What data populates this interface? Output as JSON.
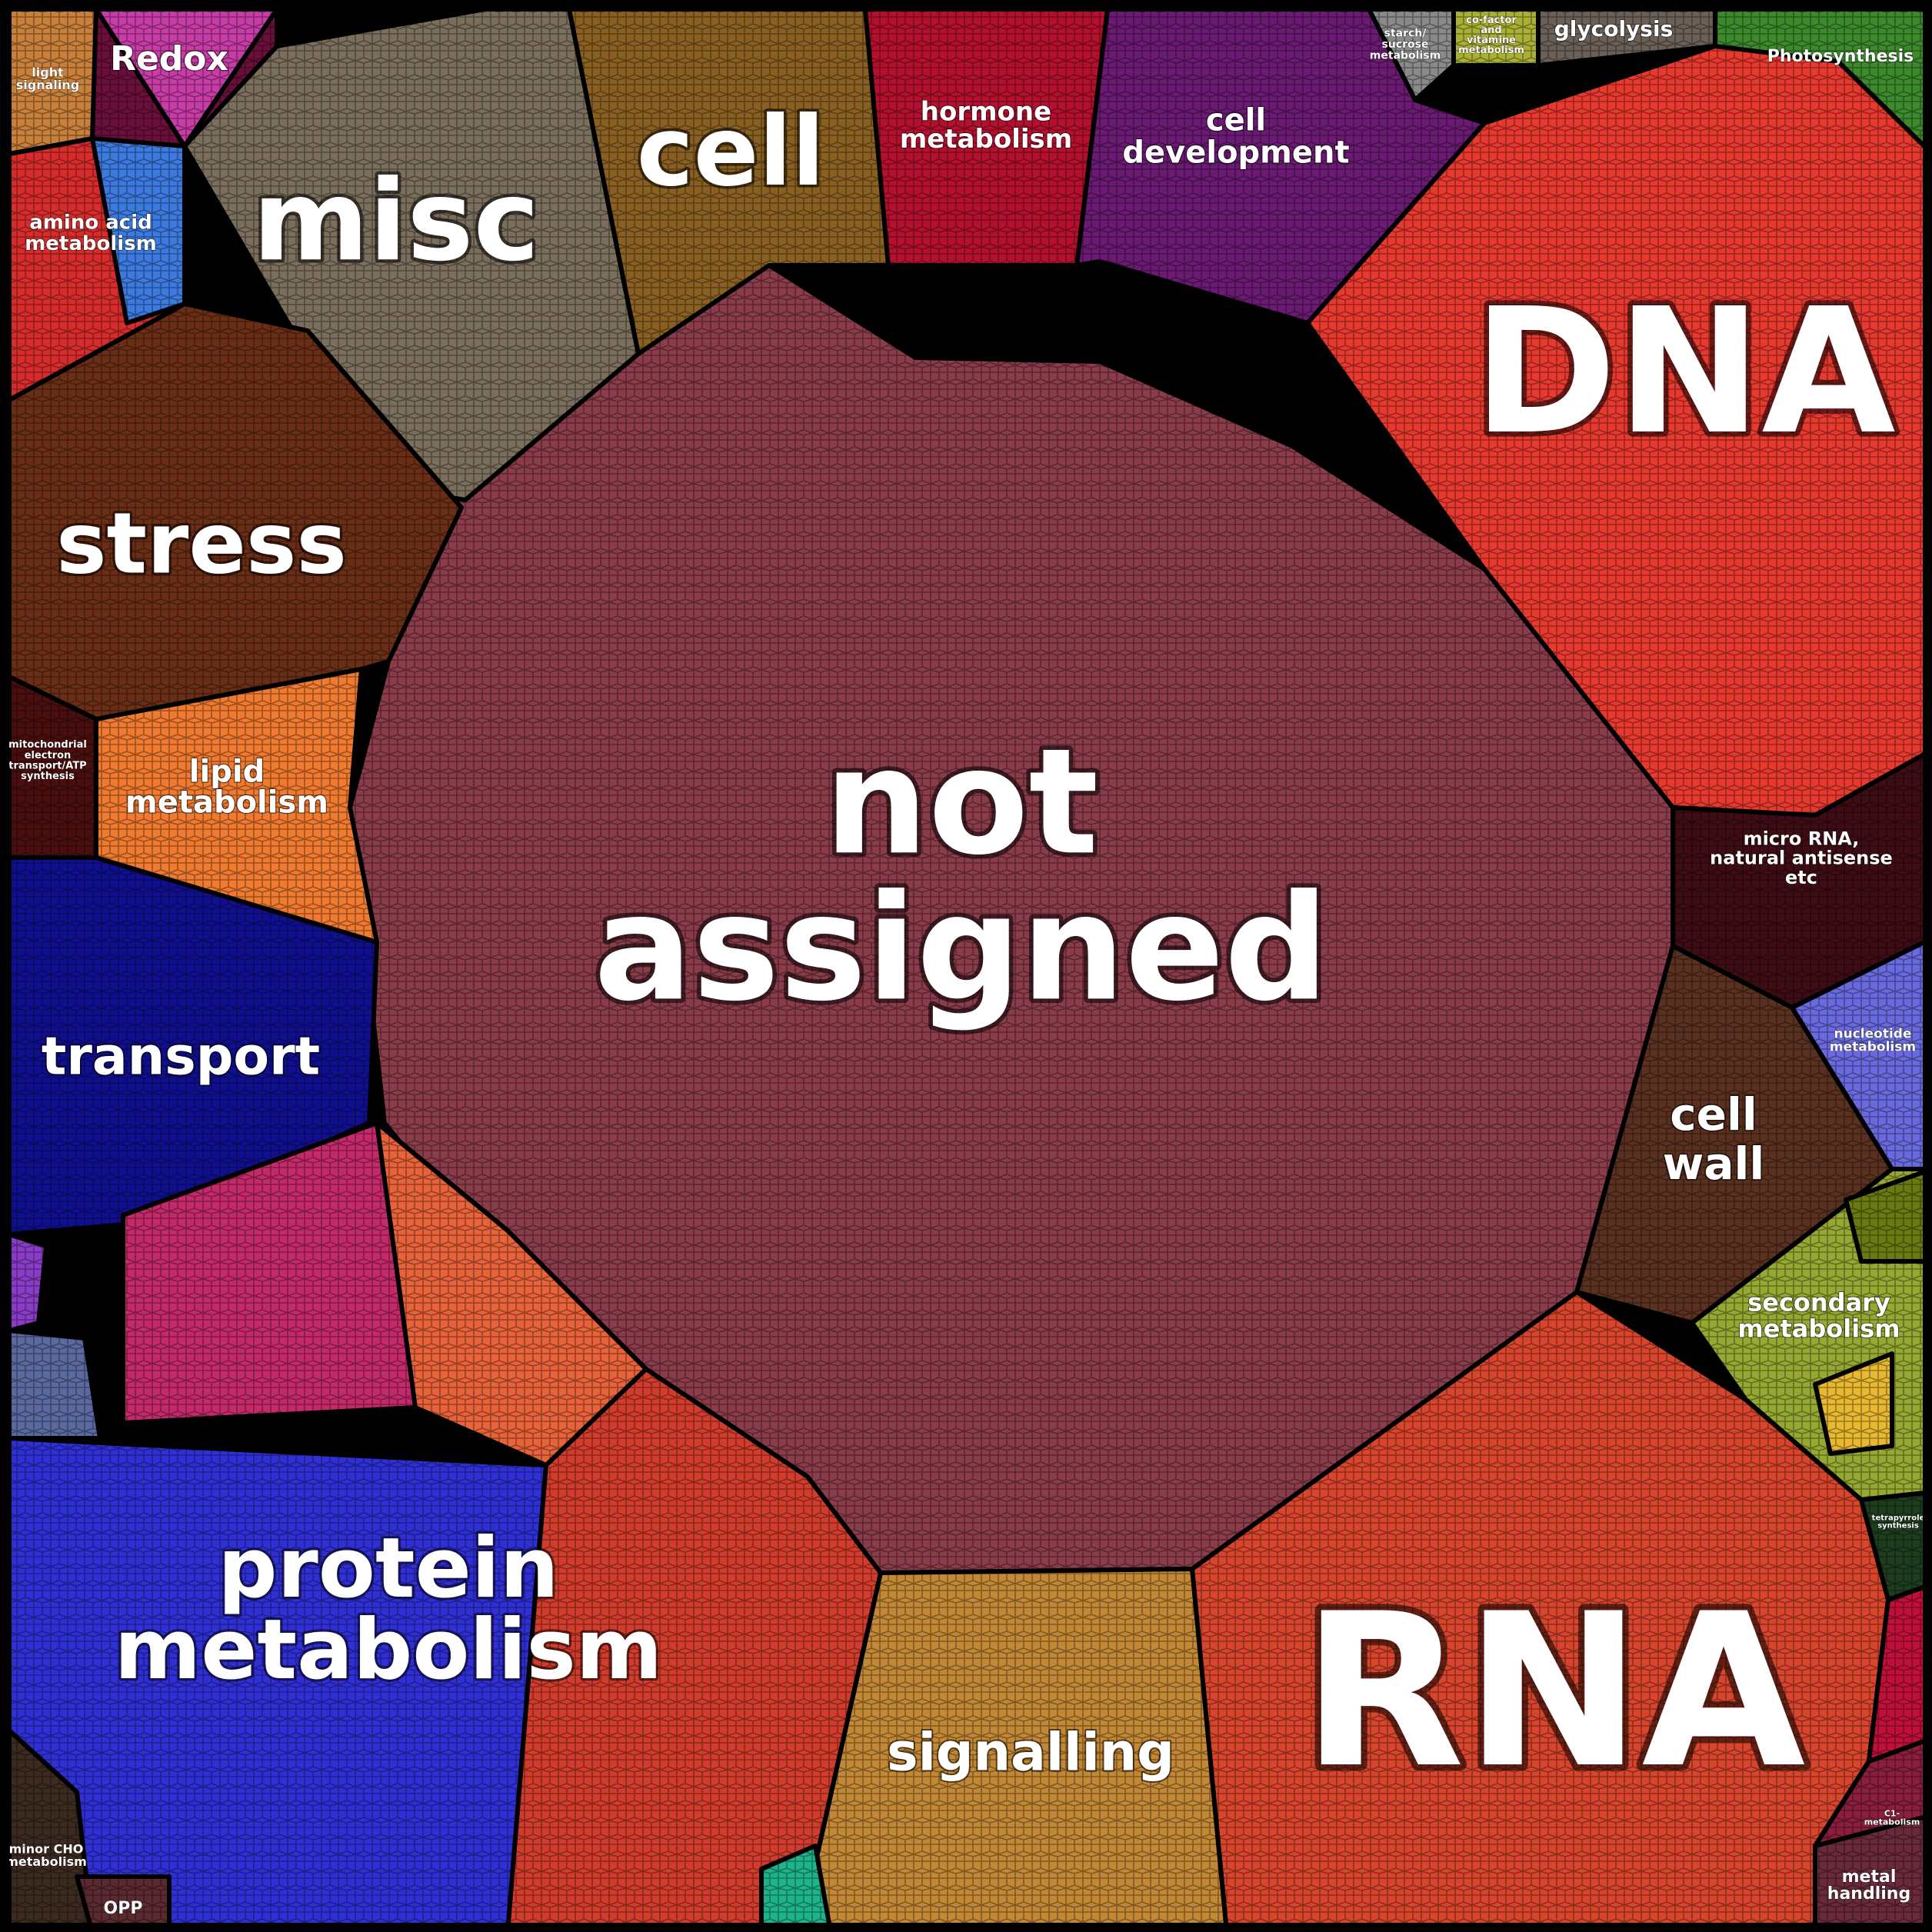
{
  "chart_data": {
    "type": "voronoi-treemap",
    "title": "",
    "style": {
      "background": "#000000",
      "border": "#000000",
      "label_color": "#ffffff"
    },
    "categories": [
      {
        "key": "not_assigned",
        "label": "not\nassigned",
        "color": "#8a3c4a"
      },
      {
        "key": "dna",
        "label": "DNA",
        "color": "#e8392f"
      },
      {
        "key": "rna",
        "label": "RNA",
        "color": "#d8452c"
      },
      {
        "key": "protein",
        "label": "protein\nmetabolism",
        "color": "#2f2fd6"
      },
      {
        "key": "misc",
        "label": "misc",
        "color": "#7b6e5c"
      },
      {
        "key": "stress",
        "label": "stress",
        "color": "#6a2e16"
      },
      {
        "key": "cell",
        "label": "cell",
        "color": "#8a6022"
      },
      {
        "key": "signalling",
        "label": "signalling",
        "color": "#c28836"
      },
      {
        "key": "transport",
        "label": "transport",
        "color": "#0f0f90"
      },
      {
        "key": "cell_dev",
        "label": "cell\ndevelopment",
        "color": "#6a1a72"
      },
      {
        "key": "hormone",
        "label": "hormone\nmetabolism",
        "color": "#b4102e"
      },
      {
        "key": "lipid",
        "label": "lipid\nmetabolism",
        "color": "#f07a30"
      },
      {
        "key": "micro_rna",
        "label": "micro RNA,\nnatural antisense\netc",
        "color": "#3e0c14"
      },
      {
        "key": "cell_wall",
        "label": "cell\nwall",
        "color": "#5a3020"
      },
      {
        "key": "secondary",
        "label": "secondary\nmetabolism",
        "color": "#96a832"
      },
      {
        "key": "amino_acid",
        "label": "amino acid\nmetabolism",
        "color": "#d82c2c"
      },
      {
        "key": "redox",
        "label": "Redox",
        "color": "#6a0f3a"
      },
      {
        "key": "nucleotide",
        "label": "nucleotide\nmetabolism",
        "color": "#6a6ae0"
      },
      {
        "key": "photosynthesis",
        "label": "Photosynthesis",
        "color": "#3c8a2c"
      },
      {
        "key": "glycolysis",
        "label": "glycolysis",
        "color": "#6a6058"
      },
      {
        "key": "mito",
        "label": "mitochondrial\nelectron\ntransport/ATP\nsynthesis",
        "color": "#4a0e0e"
      },
      {
        "key": "light",
        "label": "light\nsignaling",
        "color": "#c8803a"
      },
      {
        "key": "starch",
        "label": "starch/\nsucrose\nmetabolism",
        "color": "#8a8a8a"
      },
      {
        "key": "cofactor",
        "label": "co-factor\nand\nvitamine\nmetabolism",
        "color": "#aab034"
      },
      {
        "key": "minor_cho",
        "label": "minor CHO\nmetabolism",
        "color": "#3c2a20"
      },
      {
        "key": "opp",
        "label": "OPP",
        "color": "#5a2a30"
      },
      {
        "key": "metal",
        "label": "metal\nhandling",
        "color": "#6a2a3c"
      },
      {
        "key": "c1",
        "label": "C1-\nmetabolism",
        "color": "#8a1e3c"
      },
      {
        "key": "tetrapyrrole",
        "label": "tetrapyrrole\nsynthesis",
        "color": "#1e3c1e"
      },
      {
        "key": "red_pink_1",
        "label": "",
        "color": "#c42a6a"
      },
      {
        "key": "red_pink_2",
        "label": "",
        "color": "#d23c2c"
      },
      {
        "key": "orange_small",
        "label": "",
        "color": "#e8623a"
      },
      {
        "key": "small_pink",
        "label": "",
        "color": "#c83ca8"
      },
      {
        "key": "small_blue",
        "label": "",
        "color": "#3c7ae0"
      },
      {
        "key": "small_teal",
        "label": "",
        "color": "#1eb48a"
      },
      {
        "key": "small_crimson",
        "label": "",
        "color": "#c0103a"
      },
      {
        "key": "small_purple",
        "label": "",
        "color": "#8a3cc8"
      },
      {
        "key": "small_olive",
        "label": "",
        "color": "#6a7a10"
      },
      {
        "key": "small_yellow",
        "label": "",
        "color": "#e8b830"
      },
      {
        "key": "small_slate",
        "label": "",
        "color": "#5a6aa0"
      }
    ]
  }
}
